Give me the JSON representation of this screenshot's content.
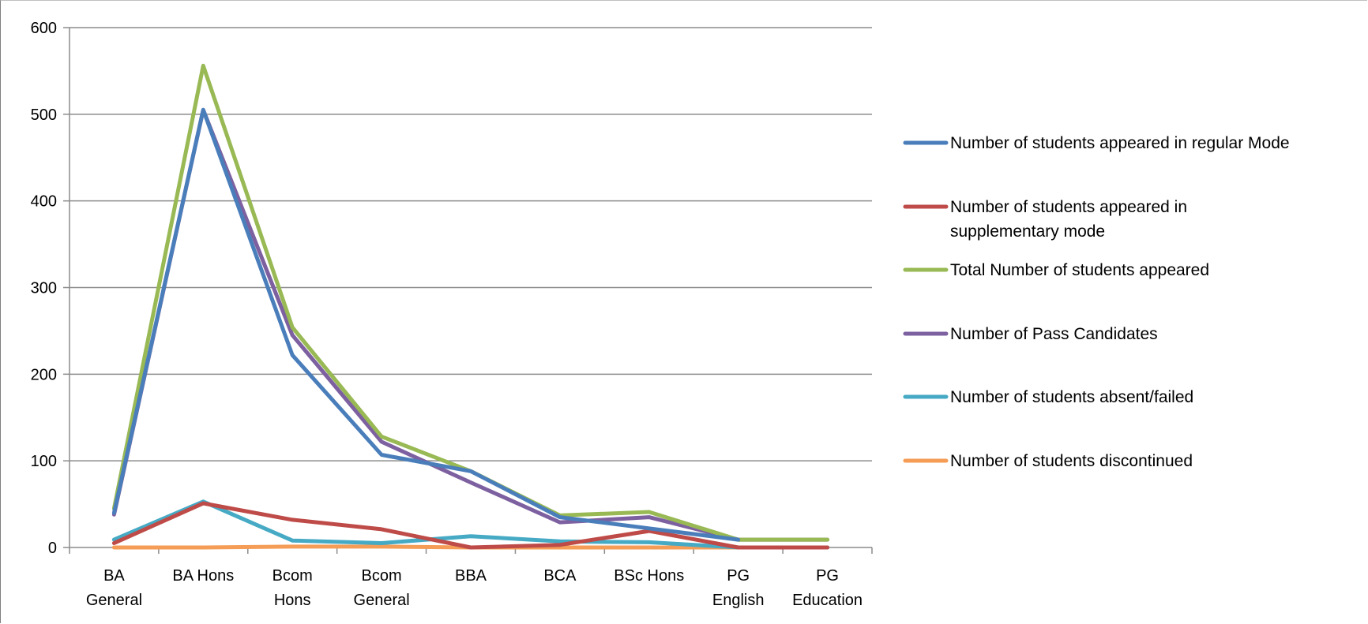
{
  "chart_data": {
    "type": "line",
    "title": "",
    "xlabel": "",
    "ylabel": "",
    "categories": [
      [
        "BA",
        "General"
      ],
      [
        "BA Hons"
      ],
      [
        "Bcom",
        "Hons"
      ],
      [
        "Bcom",
        "General"
      ],
      [
        "BBA"
      ],
      [
        "BCA"
      ],
      [
        "BSc Hons"
      ],
      [
        "PG",
        "English"
      ],
      [
        "PG",
        "Education"
      ]
    ],
    "ylim": [
      0,
      600
    ],
    "yticks": [
      "0",
      "100",
      "200",
      "300",
      "400",
      "500",
      "600"
    ],
    "grid": true,
    "legend_position": "right",
    "series": [
      {
        "name": "Number of students appeared in regular Mode",
        "legend_lines": [
          "Number of students appeared in regular Mode"
        ],
        "color": "#4a7ebb",
        "values": [
          40,
          505,
          222,
          107,
          88,
          35,
          22,
          9,
          null
        ]
      },
      {
        "name": "Number of students appeared in supplementary mode",
        "legend_lines": [
          "Number of students appeared in",
          "supplementary mode"
        ],
        "color": "#be4b48",
        "values": [
          5,
          51,
          32,
          21,
          0,
          3,
          19,
          0,
          0
        ]
      },
      {
        "name": "Total Number of students appeared",
        "legend_lines": [
          "Total Number of students appeared"
        ],
        "color": "#98b954",
        "values": [
          45,
          556,
          254,
          128,
          88,
          37,
          41,
          9,
          9
        ]
      },
      {
        "name": "Number of Pass Candidates",
        "legend_lines": [
          "Number of Pass Candidates"
        ],
        "color": "#7d60a0",
        "values": [
          38,
          505,
          245,
          122,
          75,
          29,
          35,
          9,
          9
        ]
      },
      {
        "name": "Number of students absent/failed",
        "legend_lines": [
          "Number of students absent/failed"
        ],
        "color": "#46aac5",
        "values": [
          9,
          53,
          8,
          5,
          13,
          7,
          6,
          0,
          0
        ]
      },
      {
        "name": "Number of students discontinued",
        "legend_lines": [
          "Number of students discontinued"
        ],
        "color": "#f59d56",
        "values": [
          0,
          0,
          1,
          1,
          0,
          0,
          0,
          0,
          0
        ]
      }
    ]
  }
}
